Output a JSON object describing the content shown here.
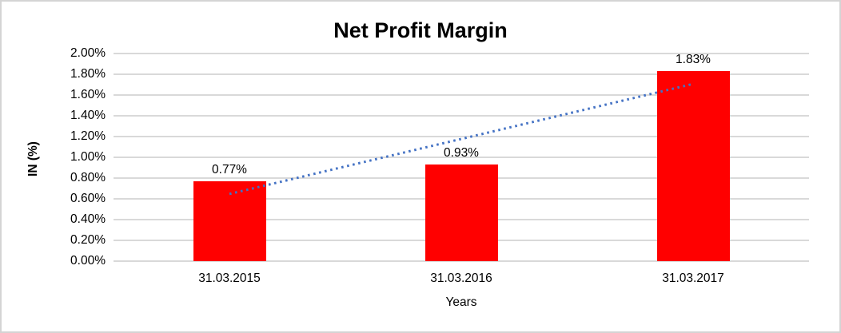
{
  "frame": {
    "background": "#ffffff",
    "border_color": "#d4d4d4"
  },
  "chart_data": {
    "type": "bar",
    "title": "Net Profit Margin",
    "xlabel": "Years",
    "ylabel": "IN (%)",
    "categories": [
      "31.03.2015",
      "31.03.2016",
      "31.03.2017"
    ],
    "values": [
      0.77,
      0.93,
      1.83
    ],
    "data_labels": [
      "0.77%",
      "0.93%",
      "1.83%"
    ],
    "ylim": [
      0,
      2
    ],
    "ytick_step": 0.2,
    "ytick_labels": [
      "0.00%",
      "0.20%",
      "0.40%",
      "0.60%",
      "0.80%",
      "1.00%",
      "1.20%",
      "1.40%",
      "1.60%",
      "1.80%",
      "2.00%"
    ],
    "grid": true,
    "gridline_color": "#d9d9d9",
    "bar_color": "#ff0000",
    "legend": "none",
    "trendline": {
      "type": "linear",
      "style": "dotted",
      "color": "#4472c4",
      "start_value": 0.647,
      "end_value": 1.707
    }
  }
}
